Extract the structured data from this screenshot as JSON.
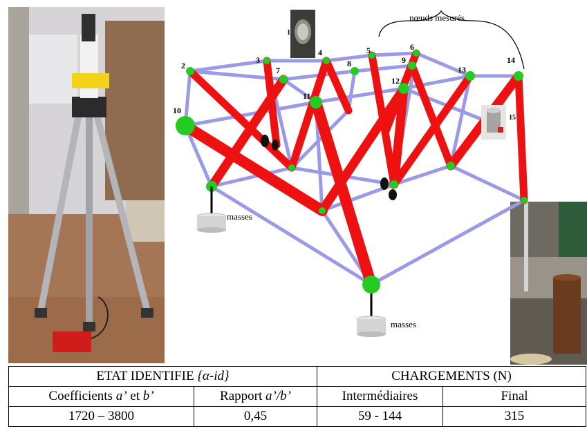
{
  "figure": {
    "annotation_measured": "nœuds mesurés",
    "mass_label_left": "masses",
    "mass_label_bottom": "masses",
    "node_labels": {
      "n1": "1",
      "n2": "2",
      "n3": "3",
      "n4": "4",
      "n5": "5",
      "n6": "6",
      "n7": "7",
      "n8": "8",
      "n9": "9",
      "n10": "10",
      "n11": "11",
      "n12": "12",
      "n13": "13",
      "n14": "14",
      "n15": "15"
    },
    "colors": {
      "strut": "#ee1111",
      "cable": "#9a9ae6",
      "node": "#22cc22"
    }
  },
  "table": {
    "h_state_prefix": "ETAT IDENTIFIE ",
    "h_state_symbol": "{α-id}",
    "h_loads": "CHARGEMENTS (N)",
    "sub_coeff_prefix": "Coefficients ",
    "sub_coeff_a": "a’",
    "sub_coeff_mid": " et ",
    "sub_coeff_b": "b’",
    "sub_ratio_prefix": "Rapport ",
    "sub_ratio_ab": "a’/b’",
    "sub_intermediate": "Intermédiaires",
    "sub_final": "Final",
    "val_coeff": "1720 – 3800",
    "val_ratio": "0,45",
    "val_intermediate": "59 - 144",
    "val_final": "315"
  }
}
